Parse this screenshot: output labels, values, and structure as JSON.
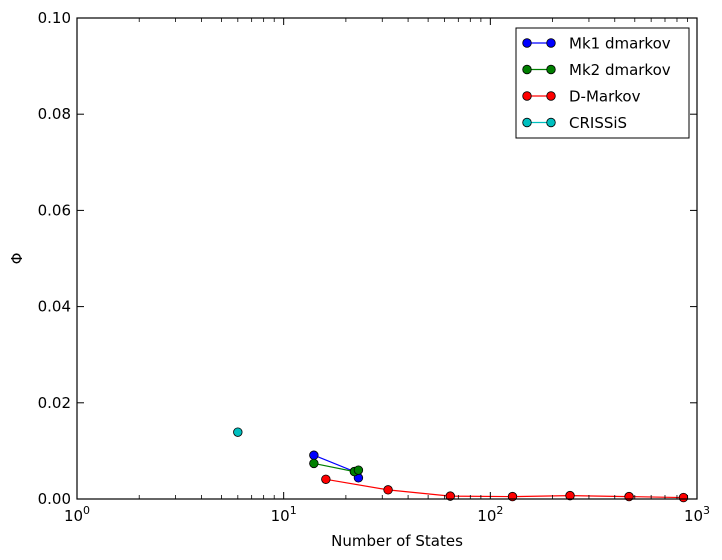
{
  "chart_data": {
    "type": "line",
    "title": "",
    "xlabel": "Number of States",
    "ylabel": "Φ",
    "xscale": "log",
    "xlim": [
      1,
      1000
    ],
    "ylim": [
      0,
      0.1
    ],
    "grid": false,
    "legend_position": "top-right",
    "x_ticks": [
      {
        "value": 1,
        "base": "10",
        "exp": "0"
      },
      {
        "value": 10,
        "base": "10",
        "exp": "1"
      },
      {
        "value": 100,
        "base": "10",
        "exp": "2"
      },
      {
        "value": 1000,
        "base": "10",
        "exp": "3"
      }
    ],
    "y_ticks": [
      {
        "value": 0.0,
        "label": "0.00"
      },
      {
        "value": 0.02,
        "label": "0.02"
      },
      {
        "value": 0.04,
        "label": "0.04"
      },
      {
        "value": 0.06,
        "label": "0.06"
      },
      {
        "value": 0.08,
        "label": "0.08"
      },
      {
        "value": 0.1,
        "label": "0.10"
      }
    ],
    "series": [
      {
        "name": "Mk1 dmarkov",
        "color": "#0000ff",
        "points": [
          {
            "x": 14,
            "y": 0.0091
          },
          {
            "x": 22,
            "y": 0.0057
          },
          {
            "x": 23,
            "y": 0.0044
          }
        ]
      },
      {
        "name": "Mk2 dmarkov",
        "color": "#007f00",
        "points": [
          {
            "x": 14,
            "y": 0.0074
          },
          {
            "x": 22,
            "y": 0.0057
          },
          {
            "x": 23,
            "y": 0.006
          }
        ]
      },
      {
        "name": "D-Markov",
        "color": "#ff0000",
        "points": [
          {
            "x": 16,
            "y": 0.0041
          },
          {
            "x": 32,
            "y": 0.0019
          },
          {
            "x": 64,
            "y": 0.0006
          },
          {
            "x": 128,
            "y": 0.0005
          },
          {
            "x": 243,
            "y": 0.0007
          },
          {
            "x": 469,
            "y": 0.0005
          },
          {
            "x": 860,
            "y": 0.0003
          }
        ]
      },
      {
        "name": "CRISSiS",
        "color": "#00bfbf",
        "points": [
          {
            "x": 6,
            "y": 0.0139
          }
        ]
      }
    ]
  }
}
